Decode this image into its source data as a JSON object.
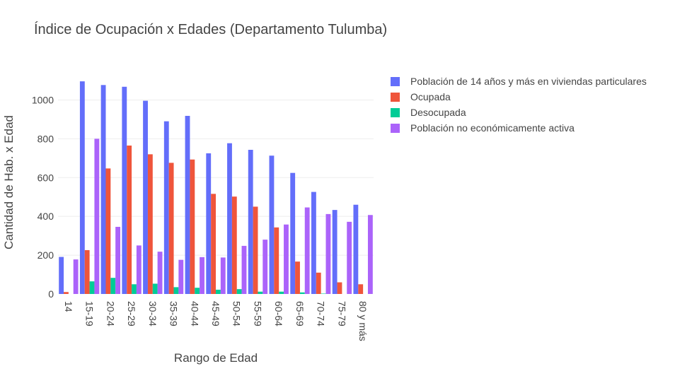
{
  "chart_data": {
    "type": "bar",
    "title": "Índice de Ocupación x Edades (Departamento Tulumba)",
    "xlabel": "Rango de Edad",
    "ylabel": "Cantidad de Hab. x Edad",
    "categories": [
      "14",
      "15-19",
      "20-24",
      "25-29",
      "30-34",
      "35-39",
      "40-44",
      "45-49",
      "50-54",
      "55-59",
      "60-64",
      "65-69",
      "70-74",
      "75-79",
      "80 y más"
    ],
    "ylim": [
      0,
      1100
    ],
    "yticks": [
      0,
      200,
      400,
      600,
      800,
      1000
    ],
    "grid": true,
    "legend_position": "top-right, outside plot",
    "series": [
      {
        "name": "Población de 14 años y más en viviendas particulares",
        "color": "#636efa",
        "values": [
          191,
          1096,
          1077,
          1068,
          996,
          890,
          918,
          725,
          777,
          743,
          713,
          624,
          526,
          433,
          460
        ]
      },
      {
        "name": "Ocupada",
        "color": "#ef553b",
        "values": [
          10,
          226,
          647,
          765,
          720,
          676,
          693,
          516,
          502,
          450,
          343,
          167,
          110,
          60,
          50
        ]
      },
      {
        "name": "Desocupada",
        "color": "#00cc96",
        "values": [
          0,
          65,
          83,
          50,
          53,
          35,
          32,
          22,
          25,
          12,
          12,
          8,
          2,
          0,
          0
        ]
      },
      {
        "name": "Población no económicamente activa",
        "color": "#ab63fa",
        "values": [
          178,
          800,
          346,
          250,
          218,
          176,
          190,
          188,
          248,
          280,
          358,
          446,
          412,
          372,
          407
        ]
      }
    ]
  }
}
